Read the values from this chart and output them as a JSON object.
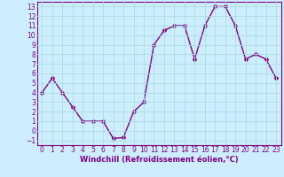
{
  "x": [
    0,
    1,
    2,
    3,
    4,
    5,
    6,
    7,
    8,
    9,
    10,
    11,
    12,
    13,
    14,
    15,
    16,
    17,
    18,
    19,
    20,
    21,
    22,
    23
  ],
  "y": [
    4,
    5.5,
    4,
    2.5,
    1,
    1,
    1,
    -0.8,
    -0.7,
    2,
    3,
    9,
    10.5,
    11,
    11,
    7.5,
    11,
    13,
    13,
    11,
    7.5,
    8,
    7.5,
    5.5
  ],
  "line_color": "#800080",
  "marker": "D",
  "marker_size": 2,
  "bg_color": "#cceeff",
  "grid_color": "#aadddd",
  "xlabel": "Windchill (Refroidissement éolien,°C)",
  "xlabel_fontsize": 6,
  "xticks": [
    0,
    1,
    2,
    3,
    4,
    5,
    6,
    7,
    8,
    9,
    10,
    11,
    12,
    13,
    14,
    15,
    16,
    17,
    18,
    19,
    20,
    21,
    22,
    23
  ],
  "yticks": [
    -1,
    0,
    1,
    2,
    3,
    4,
    5,
    6,
    7,
    8,
    9,
    10,
    11,
    12,
    13
  ],
  "ylim": [
    -1.5,
    13.5
  ],
  "xlim": [
    -0.5,
    23.5
  ],
  "tick_fontsize": 5.5,
  "line_width": 1.0
}
